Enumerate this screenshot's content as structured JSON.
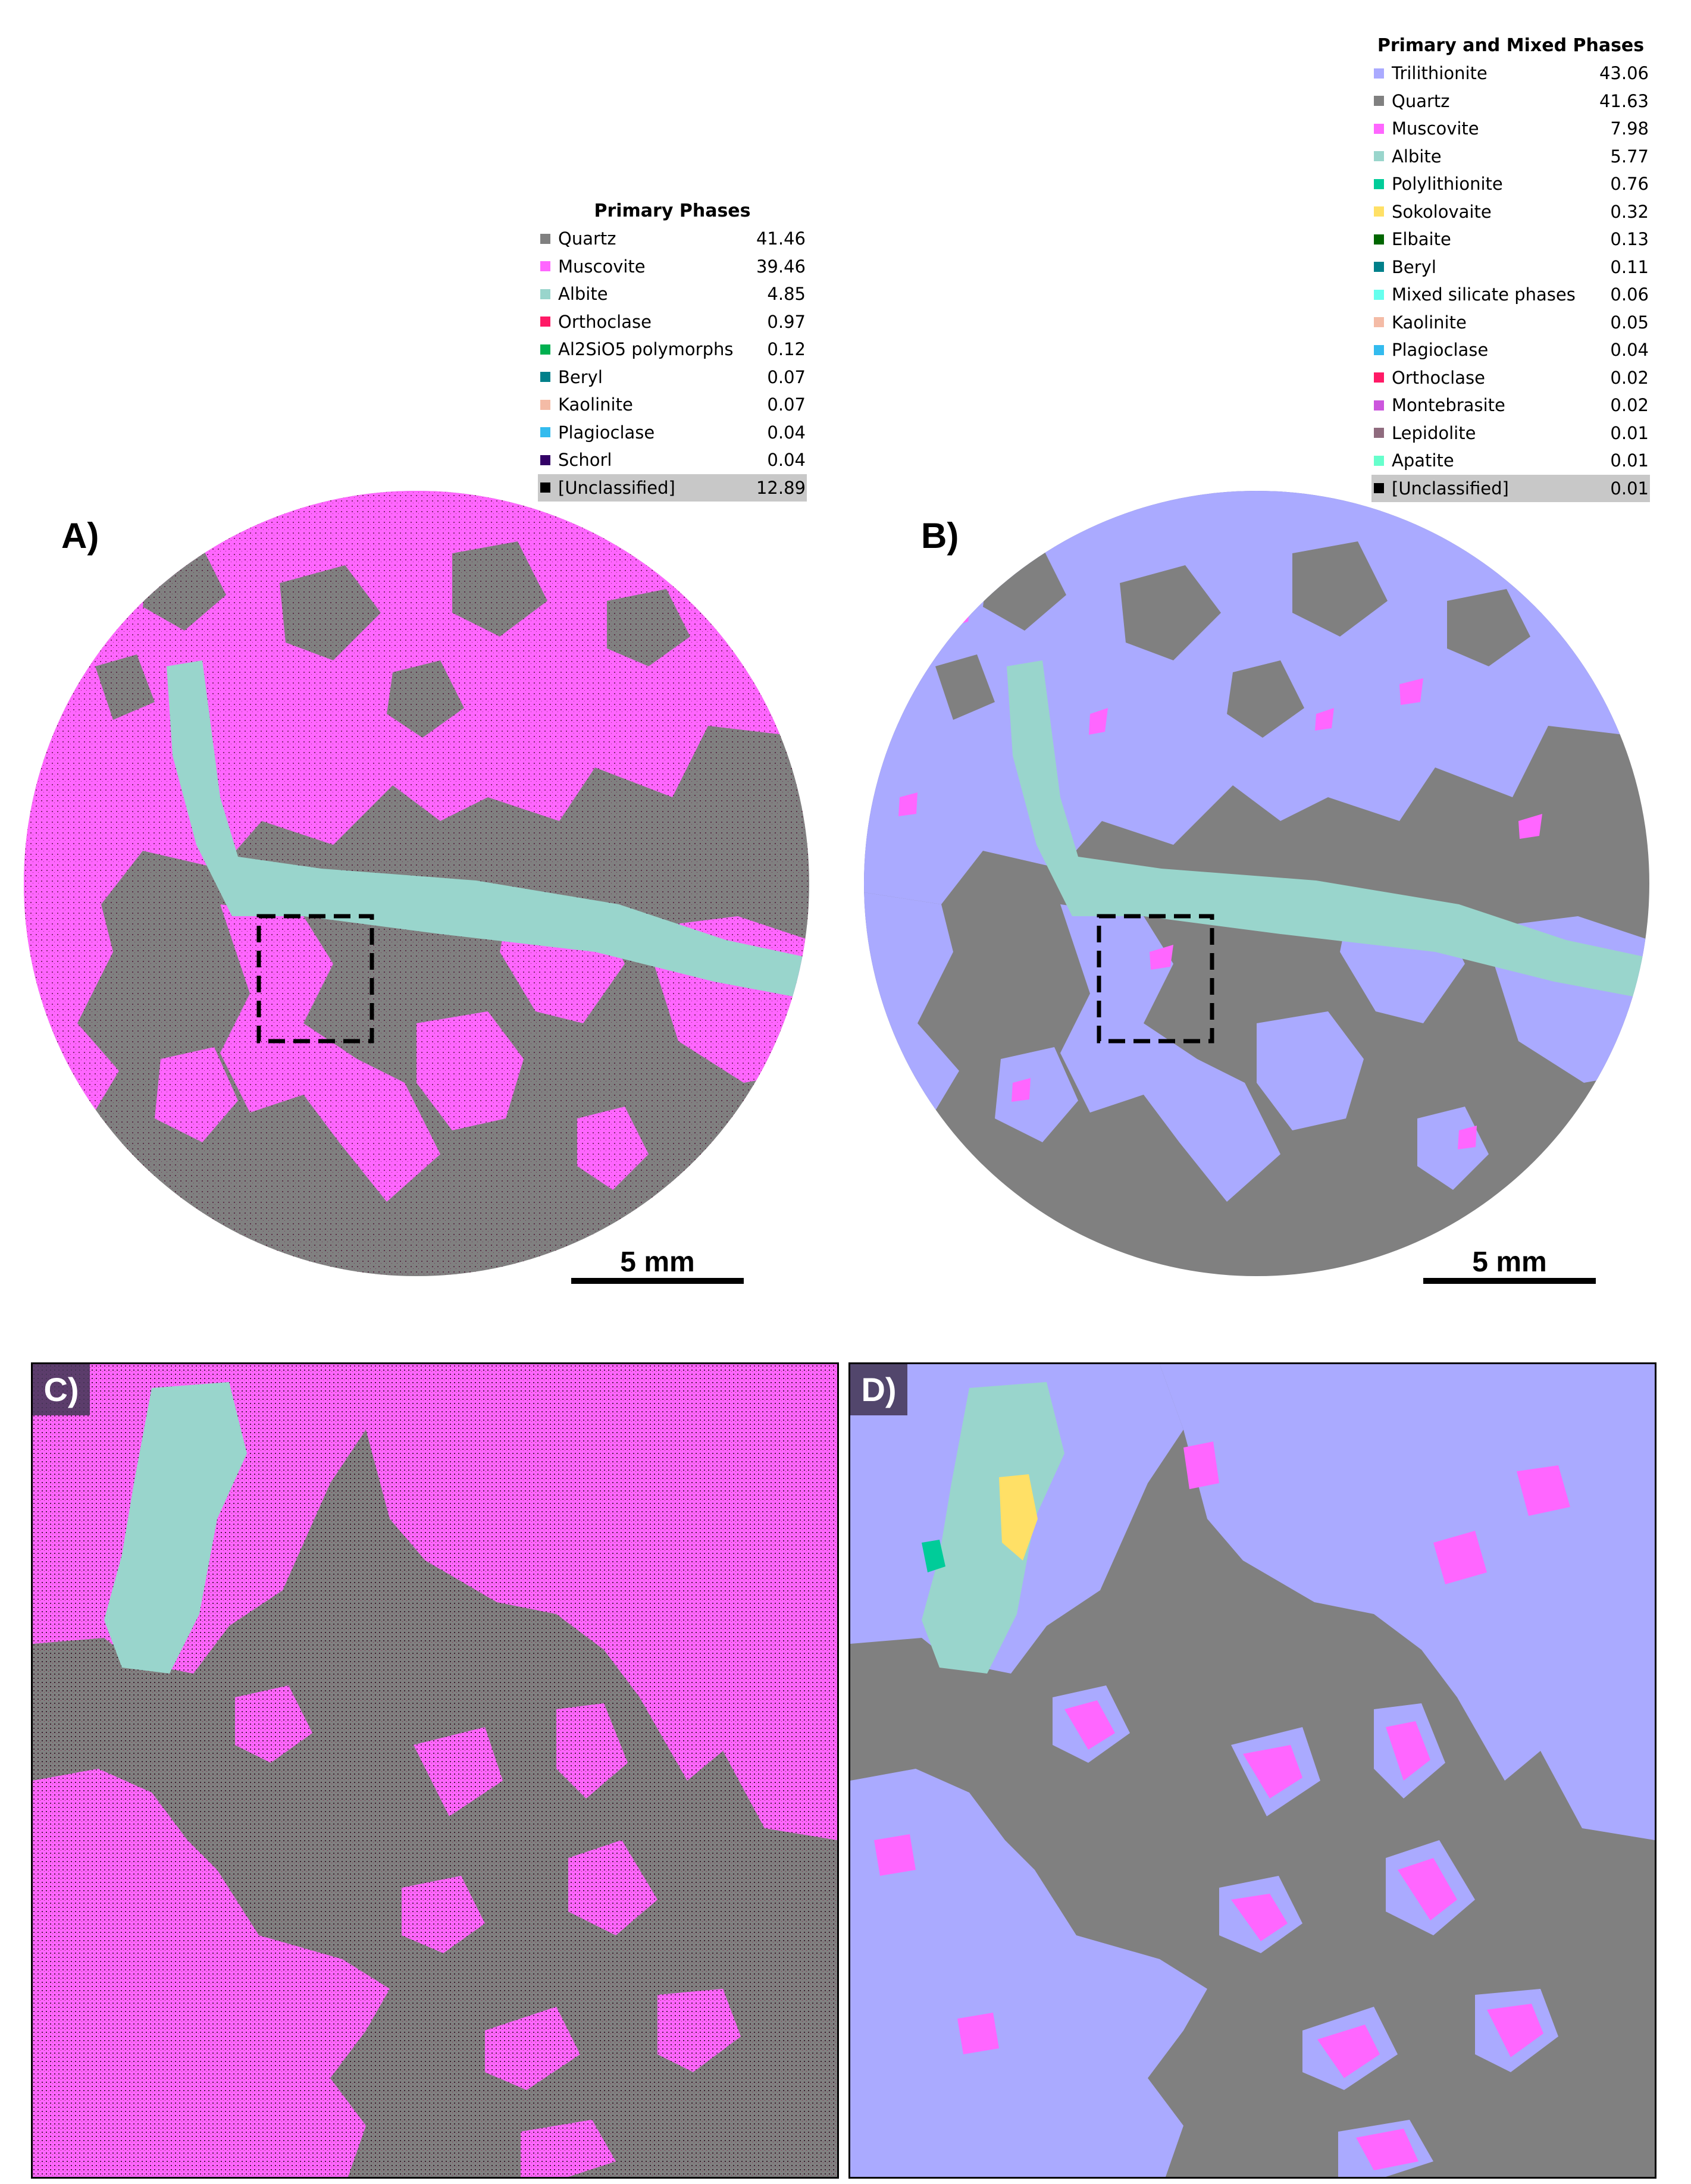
{
  "panels": {
    "a": {
      "label": "A)",
      "scale_bar": "5 mm"
    },
    "b": {
      "label": "B)",
      "scale_bar": "5 mm"
    },
    "c": {
      "label": "C)"
    },
    "d": {
      "label": "D)"
    }
  },
  "legend_primary": {
    "title": "Primary Phases",
    "items": [
      {
        "name": "Quartz",
        "value": "41.46",
        "color": "#808080"
      },
      {
        "name": "Muscovite",
        "value": "39.46",
        "color": "#ff66ff"
      },
      {
        "name": "Albite",
        "value": "4.85",
        "color": "#99d5cc"
      },
      {
        "name": "Orthoclase",
        "value": "0.97",
        "color": "#ff1a66"
      },
      {
        "name": "Al2SiO5 polymorphs",
        "value": "0.12",
        "color": "#00b050"
      },
      {
        "name": "Beryl",
        "value": "0.07",
        "color": "#00808a"
      },
      {
        "name": "Kaolinite",
        "value": "0.07",
        "color": "#f4bba6"
      },
      {
        "name": "Plagioclase",
        "value": "0.04",
        "color": "#33bbee"
      },
      {
        "name": "Schorl",
        "value": "0.04",
        "color": "#330066"
      },
      {
        "name": "[Unclassified]",
        "value": "12.89",
        "color": "#000000"
      }
    ]
  },
  "legend_mixed": {
    "title": "Primary and Mixed Phases",
    "items": [
      {
        "name": "Trilithionite",
        "value": "43.06",
        "color": "#aaaaff"
      },
      {
        "name": "Quartz",
        "value": "41.63",
        "color": "#808080"
      },
      {
        "name": "Muscovite",
        "value": "7.98",
        "color": "#ff66ff"
      },
      {
        "name": "Albite",
        "value": "5.77",
        "color": "#99d5cc"
      },
      {
        "name": "Polylithionite",
        "value": "0.76",
        "color": "#00cc99"
      },
      {
        "name": "Sokolovaite",
        "value": "0.32",
        "color": "#ffe066"
      },
      {
        "name": "Elbaite",
        "value": "0.13",
        "color": "#006600"
      },
      {
        "name": "Beryl",
        "value": "0.11",
        "color": "#00808a"
      },
      {
        "name": "Mixed silicate phases",
        "value": "0.06",
        "color": "#66ffee"
      },
      {
        "name": "Kaolinite",
        "value": "0.05",
        "color": "#f4bba6"
      },
      {
        "name": "Plagioclase",
        "value": "0.04",
        "color": "#33bbee"
      },
      {
        "name": "Orthoclase",
        "value": "0.02",
        "color": "#ff1a66"
      },
      {
        "name": "Montebrasite",
        "value": "0.02",
        "color": "#cc55dd"
      },
      {
        "name": "Lepidolite",
        "value": "0.01",
        "color": "#8f6b7e"
      },
      {
        "name": "Apatite",
        "value": "0.01",
        "color": "#66ffcc"
      },
      {
        "name": "[Unclassified]",
        "value": "0.01",
        "color": "#000000"
      }
    ]
  }
}
